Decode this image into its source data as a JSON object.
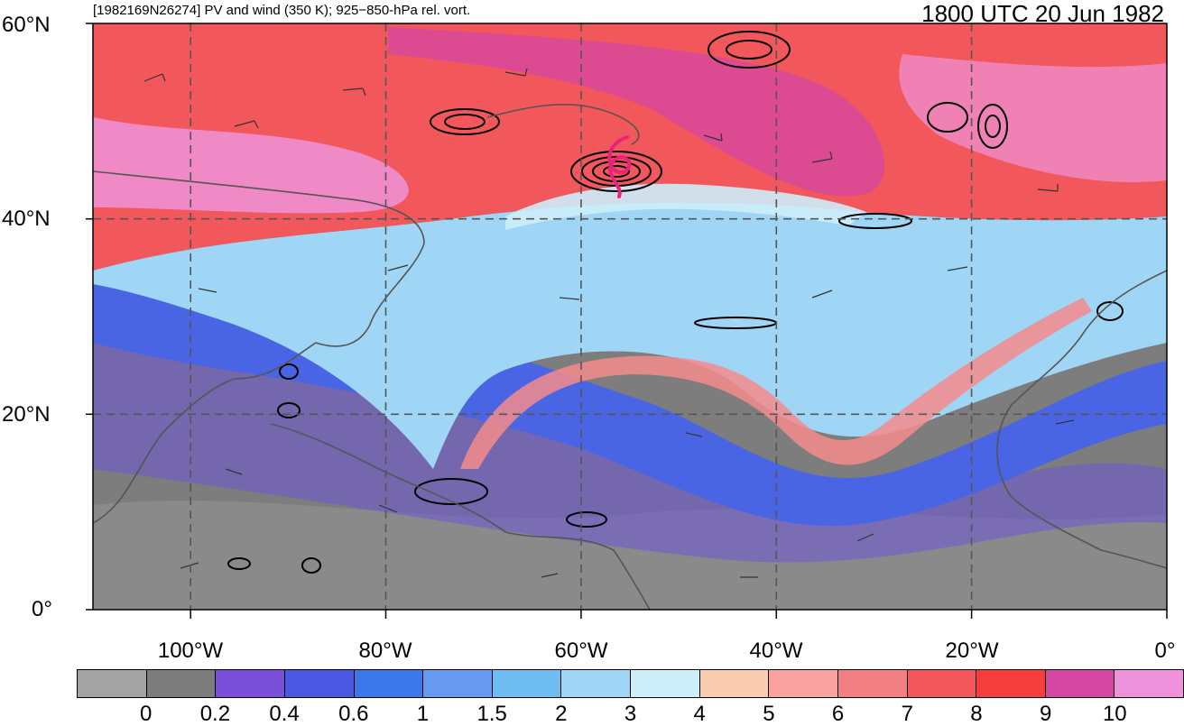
{
  "header": {
    "title_left": "[1982169N26274] PV and wind (350 K); 925−850-hPa rel. vort.",
    "title_right": "1800 UTC 20 Jun 1982"
  },
  "axes": {
    "lat_labels": [
      "60°N",
      "40°N",
      "20°N",
      "0°"
    ],
    "lon_labels": [
      "100°W",
      "80°W",
      "60°W",
      "40°W",
      "20°W",
      "0°"
    ]
  },
  "map": {
    "lat_range": [
      0,
      60
    ],
    "lon_range": [
      -110,
      0
    ],
    "gridlines": true,
    "storm_symbol": "tropical-cyclone-icon",
    "storm_color": "#e8237a",
    "storm_position": {
      "lat": 46,
      "lon": -56
    }
  },
  "colorbar": {
    "colors": [
      "#a3a3a3",
      "#7d7d7d",
      "#7a4fd9",
      "#4a57e0",
      "#3b78ea",
      "#6699ef",
      "#6fbdf0",
      "#9fd6f6",
      "#cdeefb",
      "#fbcdb0",
      "#f9a3a0",
      "#f47f82",
      "#f2575b",
      "#f53e3e",
      "#d447a3",
      "#ee93db"
    ],
    "labels": [
      "0",
      "0.2",
      "0.4",
      "0.6",
      "1",
      "1.5",
      "2",
      "3",
      "4",
      "5",
      "6",
      "7",
      "8",
      "9",
      "10"
    ]
  }
}
